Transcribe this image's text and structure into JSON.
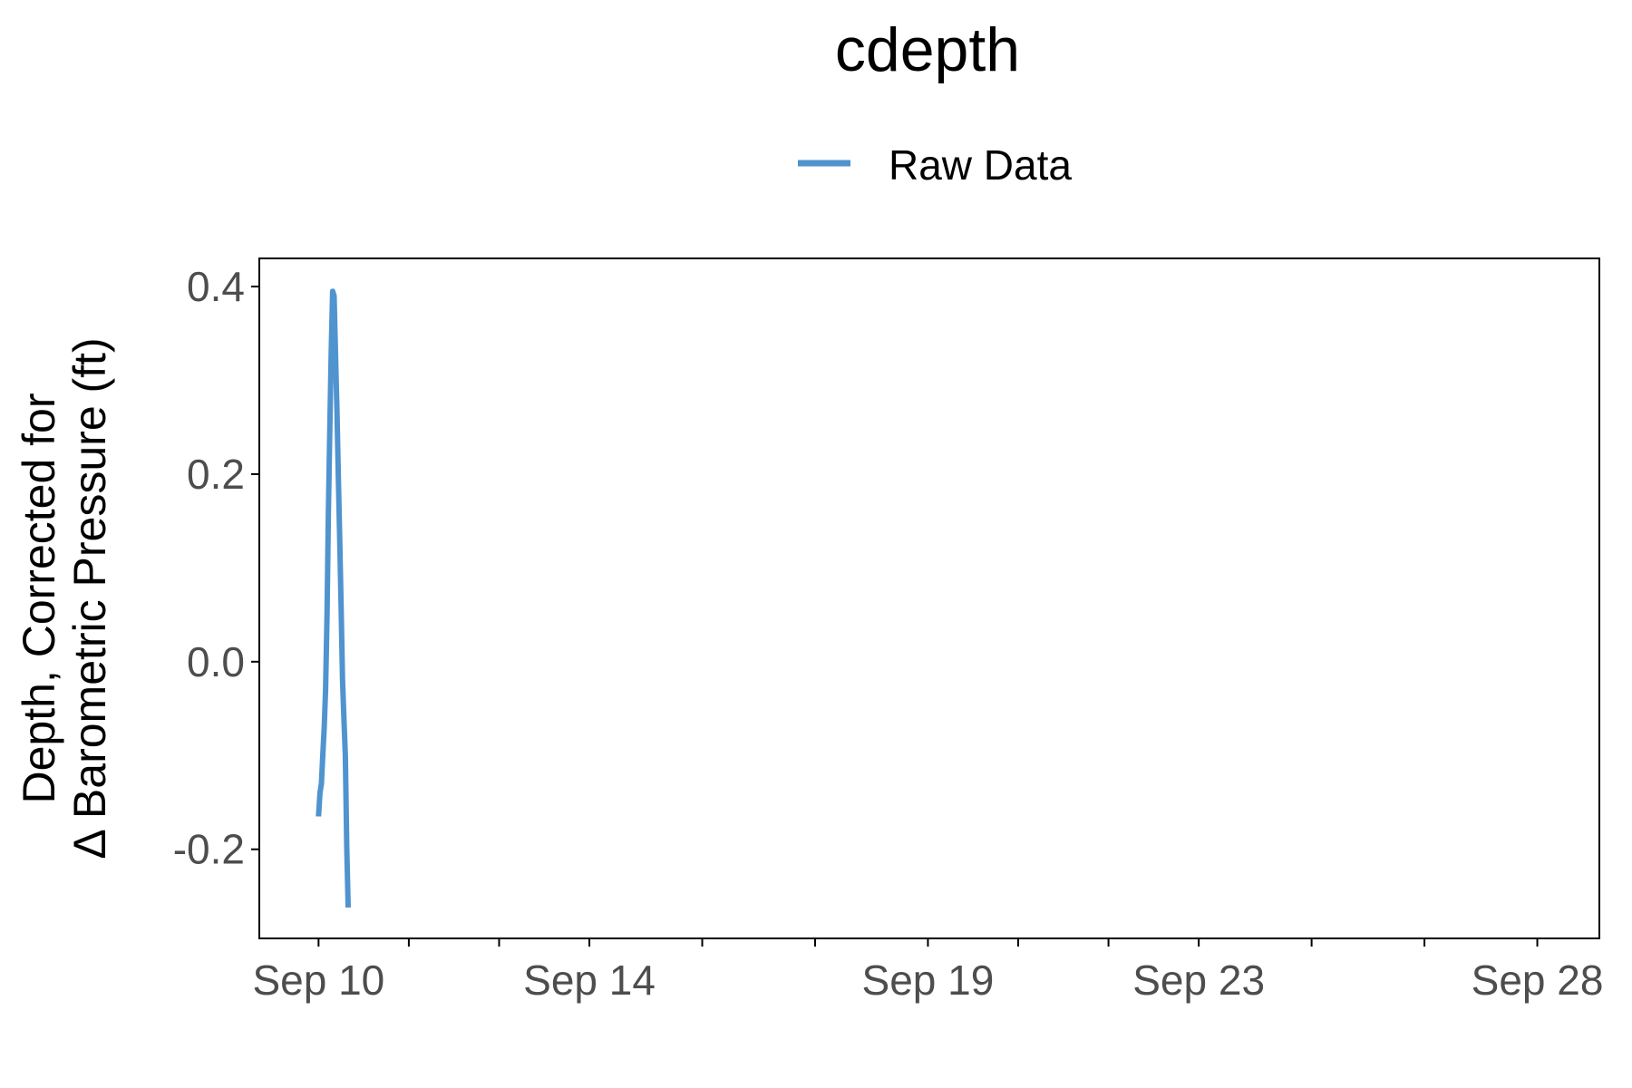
{
  "chart_data": {
    "type": "line",
    "title": "cdepth",
    "ylabel_line1": "Depth, Corrected for",
    "ylabel_line2": "Δ Barometric Pressure (ft)",
    "xlabel": "",
    "legend": {
      "position": "top",
      "entries": [
        "Raw Data"
      ]
    },
    "x_ticks": [
      "Sep 10",
      "Sep 14",
      "Sep 19",
      "Sep 23",
      "Sep 28"
    ],
    "y_ticks": [
      "-0.2",
      "0.0",
      "0.2",
      "0.4"
    ],
    "ylim": [
      -0.295,
      0.43
    ],
    "xlim": [
      "2023-09-09 03:00",
      "2023-09-28 22:00"
    ],
    "grid": false,
    "colors": {
      "series": "#4f93cf",
      "axis": "#000000",
      "tick_text": "#4d4d4d"
    },
    "series": [
      {
        "name": "Raw Data",
        "x": [
          "2023-09-10 00:00",
          "2023-09-10 00:30",
          "2023-09-10 01:00",
          "2023-09-10 01:30",
          "2023-09-10 02:00",
          "2023-09-10 02:30",
          "2023-09-10 03:00",
          "2023-09-10 03:30",
          "2023-09-10 04:00",
          "2023-09-10 04:30",
          "2023-09-10 05:00",
          "2023-09-10 05:30",
          "2023-09-10 06:00",
          "2023-09-10 06:30",
          "2023-09-10 07:00",
          "2023-09-10 07:30",
          "2023-09-10 08:00",
          "2023-09-10 08:30",
          "2023-09-10 09:00",
          "2023-09-10 09:30",
          "2023-09-10 10:00",
          "2023-09-10 10:30"
        ],
        "values": [
          -0.165,
          -0.14,
          -0.13,
          -0.1,
          -0.07,
          -0.03,
          0.05,
          0.16,
          0.25,
          0.33,
          0.395,
          0.39,
          0.33,
          0.27,
          0.2,
          0.13,
          0.06,
          -0.02,
          -0.06,
          -0.1,
          -0.2,
          -0.262
        ]
      }
    ]
  }
}
